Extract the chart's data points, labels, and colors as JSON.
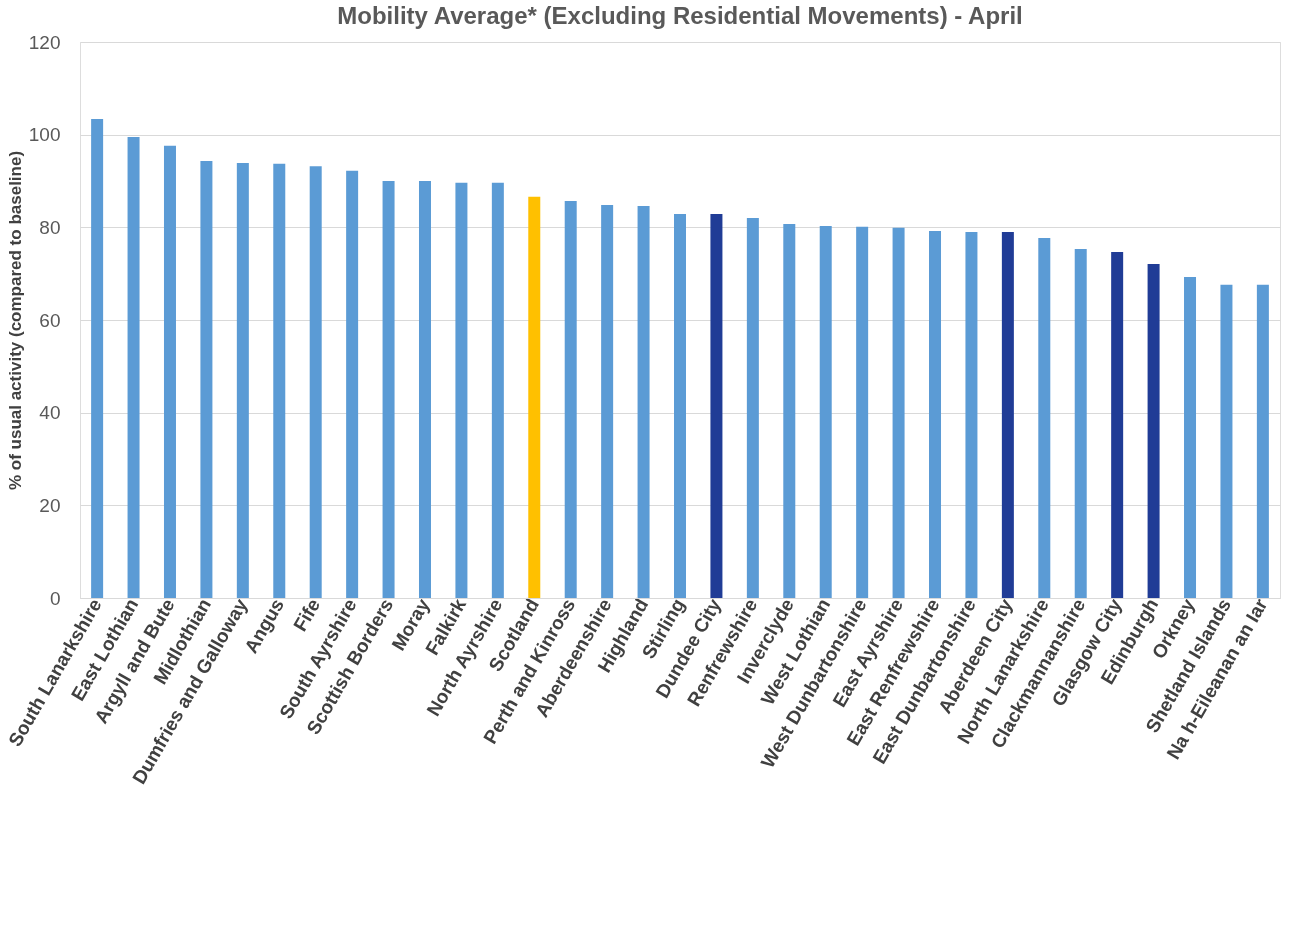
{
  "chart_data": {
    "type": "bar",
    "title": "Mobility Average* (Excluding Residential Movements) - April",
    "ylabel": "% of usual activity (compared to baseline)",
    "categories": [
      "South Lanarkshire",
      "East Lothian",
      "Argyll and Bute",
      "Midlothian",
      "Dumfries and Galloway",
      "Angus",
      "Fife",
      "South Ayrshire",
      "Scottish Borders",
      "Moray",
      "Falkirk",
      "North Ayrshire",
      "Scotland",
      "Perth and Kinross",
      "Aberdeenshire",
      "Highland",
      "Stirling",
      "Dundee City",
      "Renfrewshire",
      "Inverclyde",
      "West Lothian",
      "West Dunbartonshire",
      "East Ayrshire",
      "East Renfrewshire",
      "East Dunbartonshire",
      "Aberdeen City",
      "North Lanarkshire",
      "Clackmannanshire",
      "Glasgow City",
      "Edinburgh",
      "Orkney",
      "Shetland Islands",
      "Na h-Eileanan an Iar"
    ],
    "values": [
      103.4,
      99.5,
      97.6,
      94.3,
      93.9,
      93.7,
      93.2,
      92.2,
      90.0,
      90.0,
      89.6,
      89.6,
      86.6,
      85.7,
      84.8,
      84.6,
      82.9,
      82.9,
      82.0,
      80.7,
      80.3,
      80.1,
      79.9,
      79.2,
      79.0,
      79.0,
      77.7,
      75.3,
      74.7,
      72.1,
      69.3,
      67.6,
      67.6
    ],
    "colors": [
      "#5b9bd5",
      "#5b9bd5",
      "#5b9bd5",
      "#5b9bd5",
      "#5b9bd5",
      "#5b9bd5",
      "#5b9bd5",
      "#5b9bd5",
      "#5b9bd5",
      "#5b9bd5",
      "#5b9bd5",
      "#5b9bd5",
      "#ffc000",
      "#5b9bd5",
      "#5b9bd5",
      "#5b9bd5",
      "#5b9bd5",
      "#203c96",
      "#5b9bd5",
      "#5b9bd5",
      "#5b9bd5",
      "#5b9bd5",
      "#5b9bd5",
      "#5b9bd5",
      "#5b9bd5",
      "#203c96",
      "#5b9bd5",
      "#5b9bd5",
      "#203c96",
      "#203c96",
      "#5b9bd5",
      "#5b9bd5",
      "#5b9bd5"
    ],
    "ylim": [
      0,
      120
    ],
    "yticks": [
      0,
      20,
      40,
      60,
      80,
      100,
      120
    ],
    "grid": "y",
    "legend": false
  }
}
